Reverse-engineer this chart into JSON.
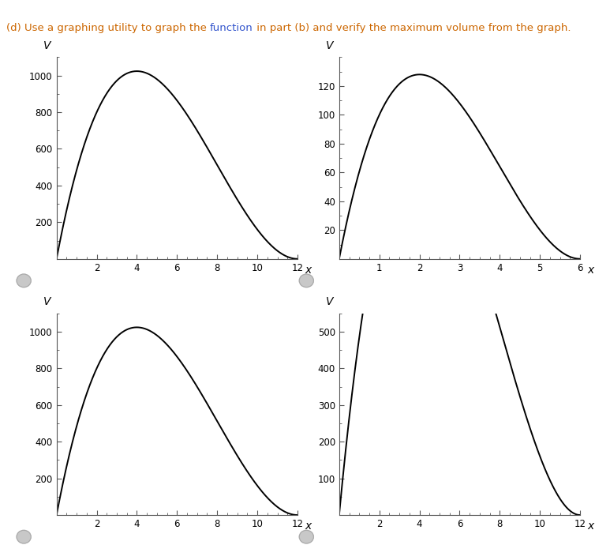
{
  "title_parts": [
    {
      "text": "(d) Use a graphing utility to graph the ",
      "color": "#CC6600"
    },
    {
      "text": "function",
      "color": "#3355cc"
    },
    {
      "text": " in part (b) and verify the maximum volume from the graph.",
      "color": "#CC6600"
    }
  ],
  "graphs": [
    {
      "s": 24,
      "xstart": 0.0,
      "xend": 12.0,
      "xlim": [
        0,
        12
      ],
      "ylim": [
        0,
        1100
      ],
      "xticks": [
        2,
        4,
        6,
        8,
        10,
        12
      ],
      "yticks": [
        200,
        400,
        600,
        800,
        1000
      ],
      "x_minor": 0.5,
      "y_minor": 100,
      "xlabel": "x",
      "ylabel": "V",
      "row": 0,
      "col": 0
    },
    {
      "s": 12,
      "xstart": 0.0,
      "xend": 6.0,
      "xlim": [
        0,
        6
      ],
      "ylim": [
        0,
        140
      ],
      "xticks": [
        1,
        2,
        3,
        4,
        5,
        6
      ],
      "yticks": [
        20,
        40,
        60,
        80,
        100,
        120
      ],
      "x_minor": 0.25,
      "y_minor": 10,
      "xlabel": "x",
      "ylabel": "V",
      "row": 0,
      "col": 1
    },
    {
      "s": 24,
      "xstart": 0.0,
      "xend": 12.0,
      "xlim": [
        0,
        12
      ],
      "ylim": [
        0,
        1100
      ],
      "xticks": [
        2,
        4,
        6,
        8,
        10,
        12
      ],
      "yticks": [
        200,
        400,
        600,
        800,
        1000
      ],
      "x_minor": 0.5,
      "y_minor": 100,
      "xlabel": "x",
      "ylabel": "V",
      "row": 1,
      "col": 0
    },
    {
      "s": 24,
      "xstart": 0.0,
      "xend": 12.0,
      "xlim": [
        0,
        12
      ],
      "ylim": [
        0,
        550
      ],
      "xticks": [
        2,
        4,
        6,
        8,
        10,
        12
      ],
      "yticks": [
        100,
        200,
        300,
        400,
        500
      ],
      "x_minor": 0.5,
      "y_minor": 50,
      "xlabel": "x",
      "ylabel": "V",
      "row": 1,
      "col": 1
    }
  ],
  "curve_color": "#000000",
  "curve_linewidth": 1.4,
  "background_color": "#ffffff",
  "axis_color": "#555555",
  "tick_fontsize": 8.5,
  "title_fontsize": 9.5,
  "label_fontsize": 10,
  "radio_color": "#c8c8c8"
}
